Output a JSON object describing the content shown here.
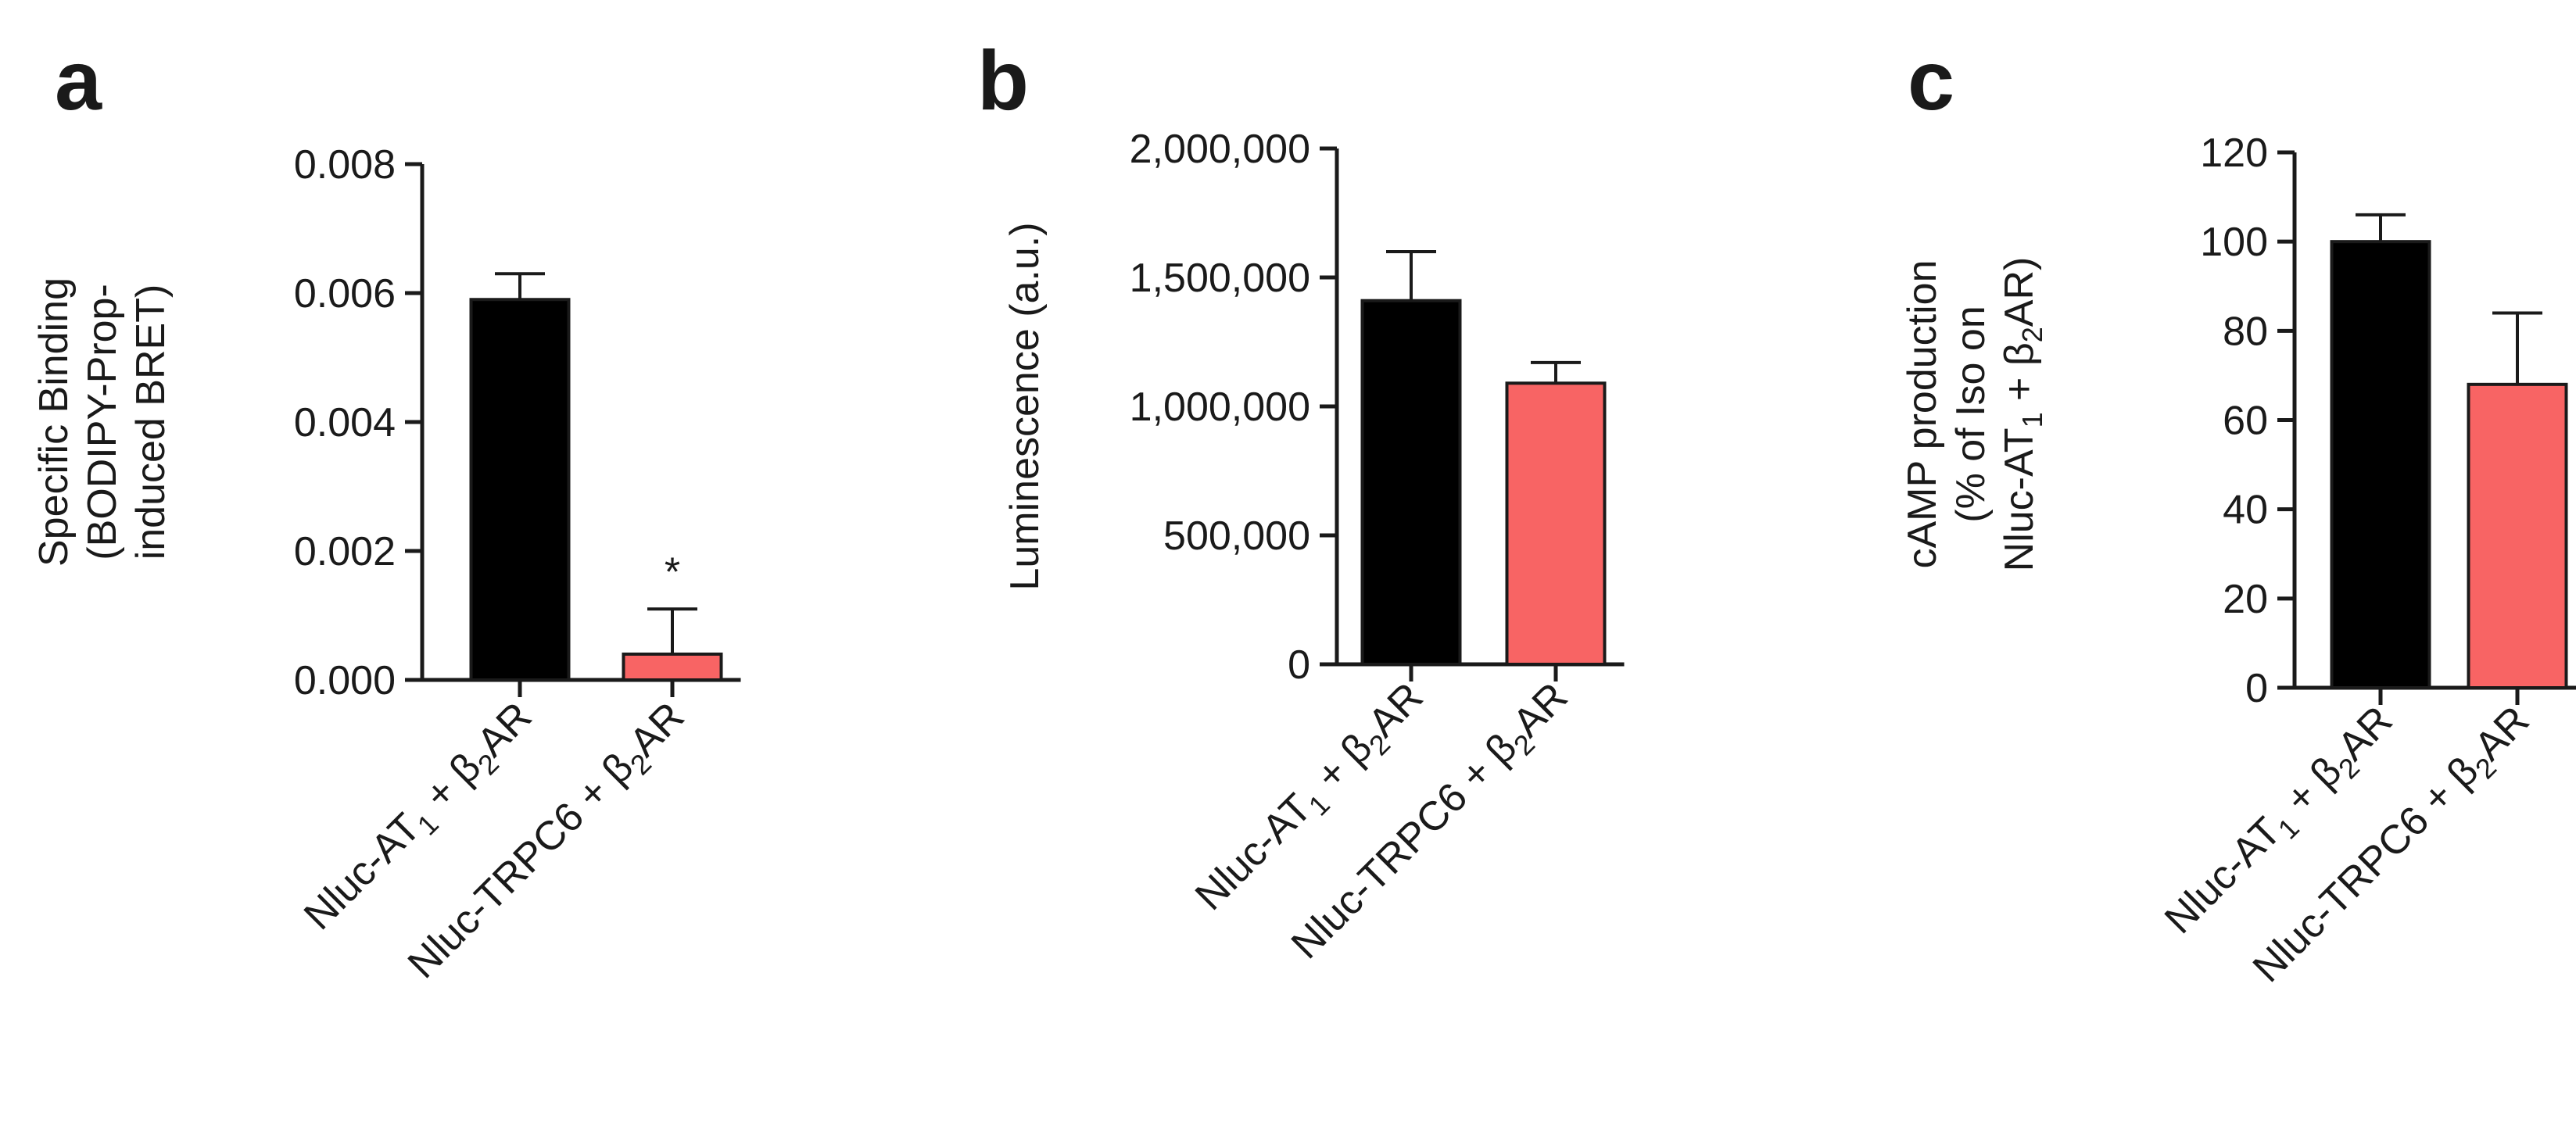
{
  "colors": {
    "series_black": "#000000",
    "series_red": "#f86464",
    "axis": "#1a1a1a"
  },
  "chart_data": [
    {
      "type": "bar",
      "panel_label": "a",
      "ylabel_lines": [
        "Specific Binding",
        "(BODIPY-Prop-",
        "induced BRET)"
      ],
      "ylim": [
        0,
        0.008
      ],
      "yticks": [
        0,
        0.002,
        0.004,
        0.006,
        0.008
      ],
      "ytick_labels": [
        "0.000",
        "0.002",
        "0.004",
        "0.006",
        "0.008"
      ],
      "categories": [
        {
          "pre": "Nluc-AT",
          "sub1": "1",
          "mid": " + β",
          "sub2": "2",
          "post": "AR"
        },
        {
          "pre": "Nluc-TRPC6 + β",
          "sub1": "",
          "mid": "",
          "sub2": "2",
          "post": "AR"
        }
      ],
      "values": [
        0.0059,
        0.0004
      ],
      "errors": [
        0.0004,
        0.0007
      ],
      "colors": [
        "#000000",
        "#f86464"
      ],
      "annotations": [
        "",
        "*"
      ],
      "grid": false
    },
    {
      "type": "bar",
      "panel_label": "b",
      "ylabel_lines": [
        "Luminescence (a.u.)"
      ],
      "ylim": [
        0,
        2000000
      ],
      "yticks": [
        0,
        500000,
        1000000,
        1500000,
        2000000
      ],
      "ytick_labels": [
        "0",
        "500,000",
        "1,000,000",
        "1,500,000",
        "2,000,000"
      ],
      "categories": [
        {
          "pre": "Nluc-AT",
          "sub1": "1",
          "mid": " + β",
          "sub2": "2",
          "post": "AR"
        },
        {
          "pre": "Nluc-TRPC6 + β",
          "sub1": "",
          "mid": "",
          "sub2": "2",
          "post": "AR"
        }
      ],
      "values": [
        1410000,
        1090000
      ],
      "errors": [
        190000,
        80000
      ],
      "colors": [
        "#000000",
        "#f86464"
      ],
      "annotations": [
        "",
        ""
      ],
      "grid": false
    },
    {
      "type": "bar",
      "panel_label": "c",
      "ylabel_lines": [
        "cAMP production",
        "(% of Iso on",
        {
          "pre": "Nluc-AT",
          "sub1": "1",
          "mid": " + β",
          "sub2": "2",
          "post": "AR)"
        }
      ],
      "ylim": [
        0,
        120
      ],
      "yticks": [
        0,
        20,
        40,
        60,
        80,
        100,
        120
      ],
      "ytick_labels": [
        "0",
        "20",
        "40",
        "60",
        "80",
        "100",
        "120"
      ],
      "categories": [
        {
          "pre": "Nluc-AT",
          "sub1": "1",
          "mid": " + β",
          "sub2": "2",
          "post": "AR"
        },
        {
          "pre": "Nluc-TRPC6 + β",
          "sub1": "",
          "mid": "",
          "sub2": "2",
          "post": "AR"
        }
      ],
      "values": [
        100,
        68
      ],
      "errors": [
        6,
        16
      ],
      "colors": [
        "#000000",
        "#f86464"
      ],
      "annotations": [
        "",
        ""
      ],
      "grid": false
    }
  ]
}
